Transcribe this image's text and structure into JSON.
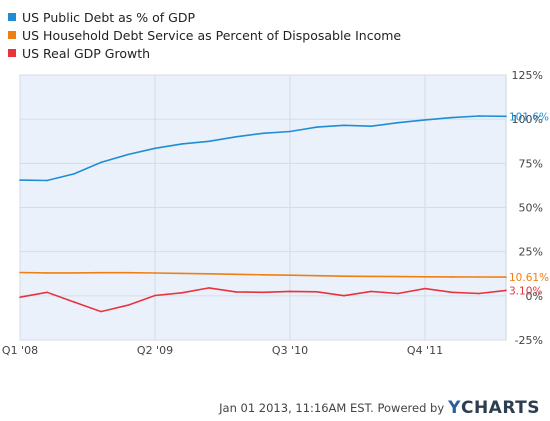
{
  "legend": [
    {
      "label": "US Public Debt as % of GDP",
      "color": "#1f8dd6"
    },
    {
      "label": "US Household Debt Service as Percent of Disposable Income",
      "color": "#f07f13"
    },
    {
      "label": "US Real GDP Growth",
      "color": "#e8333c"
    }
  ],
  "footer": {
    "timestamp": "Jan 01 2013, 11:16AM EST.",
    "powered_by": "Powered by",
    "brand_y": "Y",
    "brand_rest": "CHARTS"
  },
  "chart_data": {
    "type": "line",
    "y_ticks": [
      "125%",
      "100%",
      "75%",
      "50%",
      "25%",
      "0%",
      "-25%"
    ],
    "ylim": [
      -25,
      125
    ],
    "x_ticks": [
      "Q1  '08",
      "Q2  '09",
      "Q3  '10",
      "Q4  '11"
    ],
    "x_tick_positions": [
      "2008-Q1",
      "2009-Q2",
      "2010-Q3",
      "2011-Q4"
    ],
    "x": [
      "2008-Q1",
      "2008-Q2",
      "2008-Q3",
      "2008-Q4",
      "2009-Q1",
      "2009-Q2",
      "2009-Q3",
      "2009-Q4",
      "2010-Q1",
      "2010-Q2",
      "2010-Q3",
      "2010-Q4",
      "2011-Q1",
      "2011-Q2",
      "2011-Q3",
      "2011-Q4",
      "2012-Q1",
      "2012-Q2",
      "2012-Q3"
    ],
    "grid": true,
    "series": [
      {
        "name": "US Public Debt as % of GDP",
        "color": "#1f8dd6",
        "end_label": "101.6%",
        "values": [
          65.5,
          65.3,
          69,
          75.5,
          80,
          83.5,
          86,
          87.5,
          90,
          92,
          93,
          95.5,
          96.5,
          96,
          98,
          99.6,
          100.9,
          101.8,
          101.6
        ]
      },
      {
        "name": "US Household Debt Service as Percent of Disposable Income",
        "color": "#f07f13",
        "end_label": "10.61%",
        "values": [
          13.2,
          13.0,
          13.0,
          13.1,
          13.1,
          12.9,
          12.7,
          12.5,
          12.2,
          11.9,
          11.7,
          11.4,
          11.1,
          11.0,
          10.9,
          10.8,
          10.7,
          10.65,
          10.61
        ]
      },
      {
        "name": "US Real GDP Growth",
        "color": "#e8333c",
        "end_label": "3.10%",
        "values": [
          -0.8,
          2.0,
          -3.5,
          -8.9,
          -5.3,
          0.2,
          1.7,
          4.5,
          2.2,
          2.0,
          2.5,
          2.3,
          0.1,
          2.5,
          1.3,
          4.1,
          2.0,
          1.3,
          3.1
        ]
      }
    ]
  }
}
